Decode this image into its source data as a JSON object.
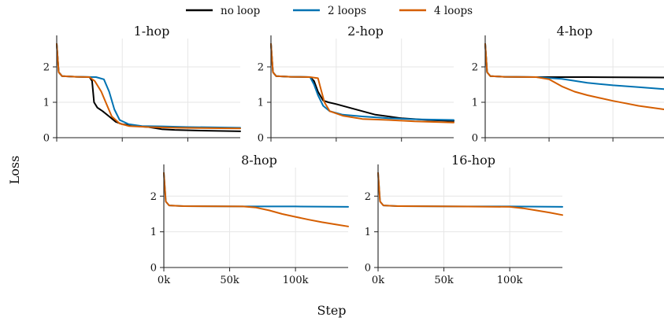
{
  "chart_data": {
    "type": "line",
    "ylabel": "Loss",
    "xlabel": "Step",
    "legend": {
      "placement": "top-center",
      "entries": [
        {
          "name": "no loop",
          "color": "#000000"
        },
        {
          "name": "2 loops",
          "color": "#0072B2"
        },
        {
          "name": "4 loops",
          "color": "#D55E00"
        }
      ]
    },
    "grid": true,
    "xlim": [
      0,
      140000
    ],
    "ylim": [
      0,
      2.8
    ],
    "yticks": [
      "0",
      "1",
      "2"
    ],
    "xticks": [
      "0k",
      "50k",
      "100k"
    ],
    "panels": [
      {
        "title": "1-hop",
        "series": [
          {
            "name": "no loop",
            "points": [
              [
                0,
                2.65
              ],
              [
                1500,
                1.85
              ],
              [
                4000,
                1.74
              ],
              [
                15000,
                1.72
              ],
              [
                25000,
                1.71
              ],
              [
                27000,
                1.6
              ],
              [
                28500,
                1.0
              ],
              [
                31000,
                0.85
              ],
              [
                35000,
                0.75
              ],
              [
                40000,
                0.6
              ],
              [
                45000,
                0.45
              ],
              [
                50000,
                0.38
              ],
              [
                60000,
                0.33
              ],
              [
                70000,
                0.3
              ],
              [
                80000,
                0.24
              ],
              [
                90000,
                0.22
              ],
              [
                110000,
                0.2
              ],
              [
                140000,
                0.18
              ]
            ]
          },
          {
            "name": "2 loops",
            "points": [
              [
                0,
                2.65
              ],
              [
                1500,
                1.85
              ],
              [
                4000,
                1.74
              ],
              [
                15000,
                1.72
              ],
              [
                30000,
                1.71
              ],
              [
                36000,
                1.65
              ],
              [
                40000,
                1.3
              ],
              [
                44000,
                0.8
              ],
              [
                48000,
                0.5
              ],
              [
                55000,
                0.38
              ],
              [
                65000,
                0.33
              ],
              [
                80000,
                0.32
              ],
              [
                100000,
                0.3
              ],
              [
                120000,
                0.29
              ],
              [
                140000,
                0.28
              ]
            ]
          },
          {
            "name": "4 loops",
            "points": [
              [
                0,
                2.65
              ],
              [
                1500,
                1.85
              ],
              [
                4000,
                1.74
              ],
              [
                15000,
                1.72
              ],
              [
                25000,
                1.71
              ],
              [
                29000,
                1.6
              ],
              [
                34000,
                1.3
              ],
              [
                38000,
                0.95
              ],
              [
                42000,
                0.6
              ],
              [
                48000,
                0.4
              ],
              [
                55000,
                0.33
              ],
              [
                70000,
                0.3
              ],
              [
                90000,
                0.28
              ],
              [
                110000,
                0.27
              ],
              [
                140000,
                0.26
              ]
            ]
          }
        ]
      },
      {
        "title": "2-hop",
        "series": [
          {
            "name": "no loop",
            "points": [
              [
                0,
                2.65
              ],
              [
                1500,
                1.85
              ],
              [
                4000,
                1.74
              ],
              [
                15000,
                1.72
              ],
              [
                30000,
                1.71
              ],
              [
                33000,
                1.6
              ],
              [
                36000,
                1.3
              ],
              [
                40000,
                1.05
              ],
              [
                44000,
                1.0
              ],
              [
                50000,
                0.95
              ],
              [
                60000,
                0.85
              ],
              [
                70000,
                0.75
              ],
              [
                80000,
                0.65
              ],
              [
                90000,
                0.6
              ],
              [
                100000,
                0.55
              ],
              [
                120000,
                0.5
              ],
              [
                140000,
                0.47
              ]
            ]
          },
          {
            "name": "2 loops",
            "points": [
              [
                0,
                2.65
              ],
              [
                1500,
                1.85
              ],
              [
                4000,
                1.74
              ],
              [
                15000,
                1.72
              ],
              [
                30000,
                1.71
              ],
              [
                33000,
                1.5
              ],
              [
                36000,
                1.2
              ],
              [
                40000,
                0.9
              ],
              [
                45000,
                0.75
              ],
              [
                55000,
                0.65
              ],
              [
                70000,
                0.6
              ],
              [
                90000,
                0.55
              ],
              [
                110000,
                0.52
              ],
              [
                140000,
                0.5
              ]
            ]
          },
          {
            "name": "4 loops",
            "points": [
              [
                0,
                2.65
              ],
              [
                1500,
                1.85
              ],
              [
                4000,
                1.74
              ],
              [
                15000,
                1.72
              ],
              [
                30000,
                1.71
              ],
              [
                36000,
                1.68
              ],
              [
                38000,
                1.4
              ],
              [
                41000,
                1.0
              ],
              [
                45000,
                0.75
              ],
              [
                55000,
                0.62
              ],
              [
                70000,
                0.53
              ],
              [
                90000,
                0.5
              ],
              [
                110000,
                0.46
              ],
              [
                140000,
                0.43
              ]
            ]
          }
        ]
      },
      {
        "title": "4-hop",
        "series": [
          {
            "name": "no loop",
            "points": [
              [
                0,
                2.65
              ],
              [
                1500,
                1.85
              ],
              [
                4000,
                1.74
              ],
              [
                15000,
                1.72
              ],
              [
                40000,
                1.71
              ],
              [
                80000,
                1.71
              ],
              [
                140000,
                1.7
              ]
            ]
          },
          {
            "name": "2 loops",
            "points": [
              [
                0,
                2.65
              ],
              [
                1500,
                1.85
              ],
              [
                4000,
                1.74
              ],
              [
                15000,
                1.72
              ],
              [
                40000,
                1.71
              ],
              [
                60000,
                1.66
              ],
              [
                80000,
                1.55
              ],
              [
                100000,
                1.48
              ],
              [
                120000,
                1.43
              ],
              [
                140000,
                1.37
              ]
            ]
          },
          {
            "name": "4 loops",
            "points": [
              [
                0,
                2.65
              ],
              [
                1500,
                1.85
              ],
              [
                4000,
                1.74
              ],
              [
                15000,
                1.72
              ],
              [
                40000,
                1.71
              ],
              [
                50000,
                1.65
              ],
              [
                60000,
                1.45
              ],
              [
                70000,
                1.3
              ],
              [
                80000,
                1.2
              ],
              [
                90000,
                1.12
              ],
              [
                100000,
                1.04
              ],
              [
                110000,
                0.97
              ],
              [
                120000,
                0.9
              ],
              [
                130000,
                0.85
              ],
              [
                140000,
                0.8
              ]
            ]
          }
        ]
      },
      {
        "title": "8-hop",
        "series": [
          {
            "name": "2 loops",
            "points": [
              [
                0,
                2.65
              ],
              [
                1500,
                1.85
              ],
              [
                4000,
                1.74
              ],
              [
                15000,
                1.72
              ],
              [
                60000,
                1.71
              ],
              [
                100000,
                1.71
              ],
              [
                140000,
                1.7
              ]
            ]
          },
          {
            "name": "4 loops",
            "points": [
              [
                0,
                2.65
              ],
              [
                1500,
                1.85
              ],
              [
                4000,
                1.74
              ],
              [
                15000,
                1.72
              ],
              [
                60000,
                1.71
              ],
              [
                70000,
                1.68
              ],
              [
                80000,
                1.6
              ],
              [
                90000,
                1.5
              ],
              [
                100000,
                1.42
              ],
              [
                110000,
                1.34
              ],
              [
                120000,
                1.27
              ],
              [
                130000,
                1.21
              ],
              [
                140000,
                1.15
              ]
            ]
          }
        ]
      },
      {
        "title": "16-hop",
        "series": [
          {
            "name": "2 loops",
            "points": [
              [
                0,
                2.65
              ],
              [
                1500,
                1.85
              ],
              [
                4000,
                1.74
              ],
              [
                15000,
                1.72
              ],
              [
                60000,
                1.71
              ],
              [
                100000,
                1.71
              ],
              [
                140000,
                1.7
              ]
            ]
          },
          {
            "name": "4 loops",
            "points": [
              [
                0,
                2.65
              ],
              [
                1500,
                1.85
              ],
              [
                4000,
                1.74
              ],
              [
                15000,
                1.72
              ],
              [
                60000,
                1.71
              ],
              [
                100000,
                1.7
              ],
              [
                110000,
                1.66
              ],
              [
                120000,
                1.6
              ],
              [
                130000,
                1.54
              ],
              [
                140000,
                1.47
              ]
            ]
          }
        ]
      }
    ]
  }
}
